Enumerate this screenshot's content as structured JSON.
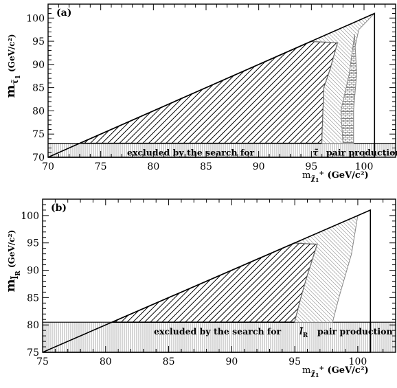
{
  "chart_data": [
    {
      "type": "area",
      "panel_label": "(a)",
      "xlabel": {
        "base": "m",
        "sub": "χ̃",
        "sub2": "1",
        "sup": "+",
        "unit": " (GeV/c²)"
      },
      "ylabel": {
        "base": "m",
        "sub": "τ̃",
        "sub2": "1",
        "unit": "(GeV/c²)"
      },
      "xlim": [
        70,
        103
      ],
      "ylim": [
        70,
        103
      ],
      "xticks": [
        70,
        75,
        80,
        85,
        90,
        95,
        100
      ],
      "yticks": [
        70,
        75,
        80,
        85,
        90,
        95,
        100
      ],
      "band": {
        "ymax": 73,
        "text_before": "excluded by the search for",
        "symbol": "τ̃",
        "text_after": "pair production"
      },
      "kinematic_boundary": [
        [
          70,
          70
        ],
        [
          101,
          101
        ],
        [
          101,
          70
        ]
      ],
      "regions": [
        {
          "pattern": "dense-hatch",
          "polygon": [
            [
              73,
              73
            ],
            [
              95,
              95
            ],
            [
              97.5,
              94.7
            ],
            [
              96.8,
              89
            ],
            [
              96.2,
              85
            ],
            [
              96,
              73
            ]
          ]
        },
        {
          "pattern": "light-hatch",
          "polygon": [
            [
              95,
              95
            ],
            [
              101,
              101
            ],
            [
              99.5,
              97.5
            ],
            [
              98.8,
              90
            ],
            [
              99,
              80
            ],
            [
              99,
              73
            ],
            [
              96,
              73
            ],
            [
              96.2,
              85
            ],
            [
              96.8,
              89
            ],
            [
              97.5,
              94.7
            ]
          ]
        },
        {
          "pattern": "brick",
          "polygon": [
            [
              97.8,
              80
            ],
            [
              98.6,
              88
            ],
            [
              99.1,
              96.5
            ],
            [
              99.3,
              88
            ],
            [
              99,
              80
            ],
            [
              99,
              73
            ],
            [
              98,
              73
            ]
          ]
        }
      ]
    },
    {
      "type": "area",
      "panel_label": "(b)",
      "xlabel": {
        "base": "m",
        "sub": "χ̃",
        "sub2": "1",
        "sup": "+",
        "unit": " (GeV/c²)"
      },
      "ylabel": {
        "base": "m",
        "sub": "l̃",
        "sub2": "R",
        "unit": "(GeV/c²)"
      },
      "xlim": [
        75,
        103
      ],
      "ylim": [
        75,
        103
      ],
      "xticks": [
        75,
        80,
        85,
        90,
        95,
        100
      ],
      "yticks": [
        75,
        80,
        85,
        90,
        95,
        100
      ],
      "band": {
        "ymax": 80.5,
        "text_before": "excluded by the search for",
        "symbol": "l̃",
        "symbol_sub": "R",
        "text_after": "pair production"
      },
      "kinematic_boundary": [
        [
          75,
          75
        ],
        [
          101,
          101
        ],
        [
          101,
          75
        ]
      ],
      "regions": [
        {
          "pattern": "dense-hatch",
          "polygon": [
            [
              80.5,
              80.5
            ],
            [
              95,
              95
            ],
            [
              96.8,
              94.8
            ],
            [
              96,
              89
            ],
            [
              95.5,
              85
            ],
            [
              95,
              80.5
            ]
          ]
        },
        {
          "pattern": "light-hatch",
          "polygon": [
            [
              95,
              95
            ],
            [
              100,
              100
            ],
            [
              99.5,
              93
            ],
            [
              98.5,
              85
            ],
            [
              98,
              80.5
            ],
            [
              95,
              80.5
            ],
            [
              95.5,
              85
            ],
            [
              96,
              89
            ],
            [
              96.8,
              94.8
            ]
          ]
        }
      ]
    }
  ]
}
